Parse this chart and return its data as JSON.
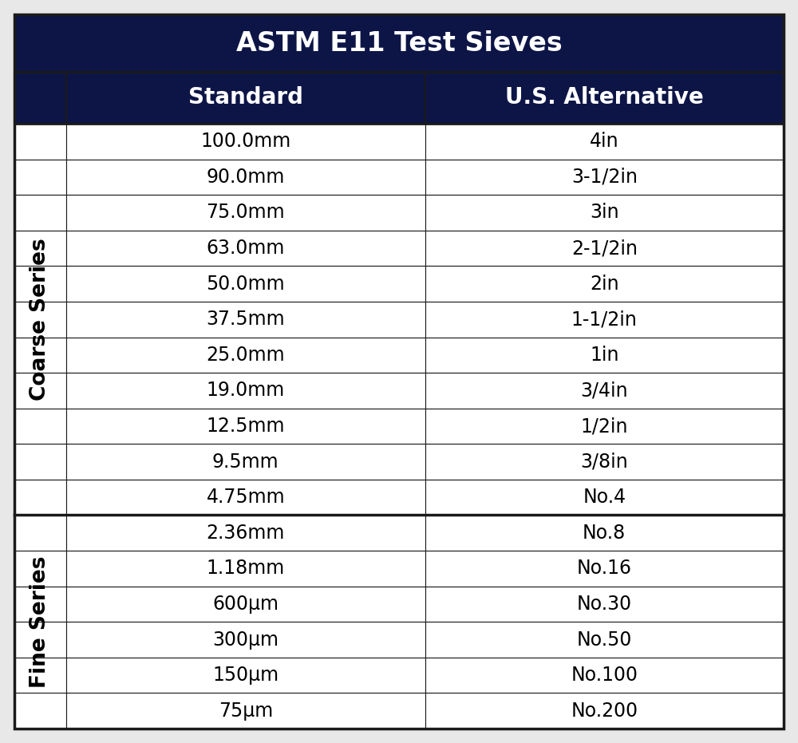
{
  "title": "ASTM E11 Test Sieves",
  "col_headers": [
    "Standard",
    "U.S. Alternative"
  ],
  "coarse_rows": [
    [
      "100.0mm",
      "4in"
    ],
    [
      "90.0mm",
      "3-1/2in"
    ],
    [
      "75.0mm",
      "3in"
    ],
    [
      "63.0mm",
      "2-1/2in"
    ],
    [
      "50.0mm",
      "2in"
    ],
    [
      "37.5mm",
      "1-1/2in"
    ],
    [
      "25.0mm",
      "1in"
    ],
    [
      "19.0mm",
      "3/4in"
    ],
    [
      "12.5mm",
      "1/2in"
    ],
    [
      "9.5mm",
      "3/8in"
    ],
    [
      "4.75mm",
      "No.4"
    ]
  ],
  "fine_rows": [
    [
      "2.36mm",
      "No.8"
    ],
    [
      "1.18mm",
      "No.16"
    ],
    [
      "600μm",
      "No.30"
    ],
    [
      "300μm",
      "No.50"
    ],
    [
      "150μm",
      "No.100"
    ],
    [
      "75μm",
      "No.200"
    ]
  ],
  "header_bg": "#0d1547",
  "header_fg": "#ffffff",
  "row_bg": "#ffffff",
  "row_fg": "#000000",
  "border_color": "#1a1a1a",
  "section_label_coarse": "Coarse Series",
  "section_label_fine": "Fine Series",
  "title_fontsize": 24,
  "header_fontsize": 20,
  "cell_fontsize": 17,
  "section_fontsize": 19,
  "fig_bg": "#e8e8e8"
}
